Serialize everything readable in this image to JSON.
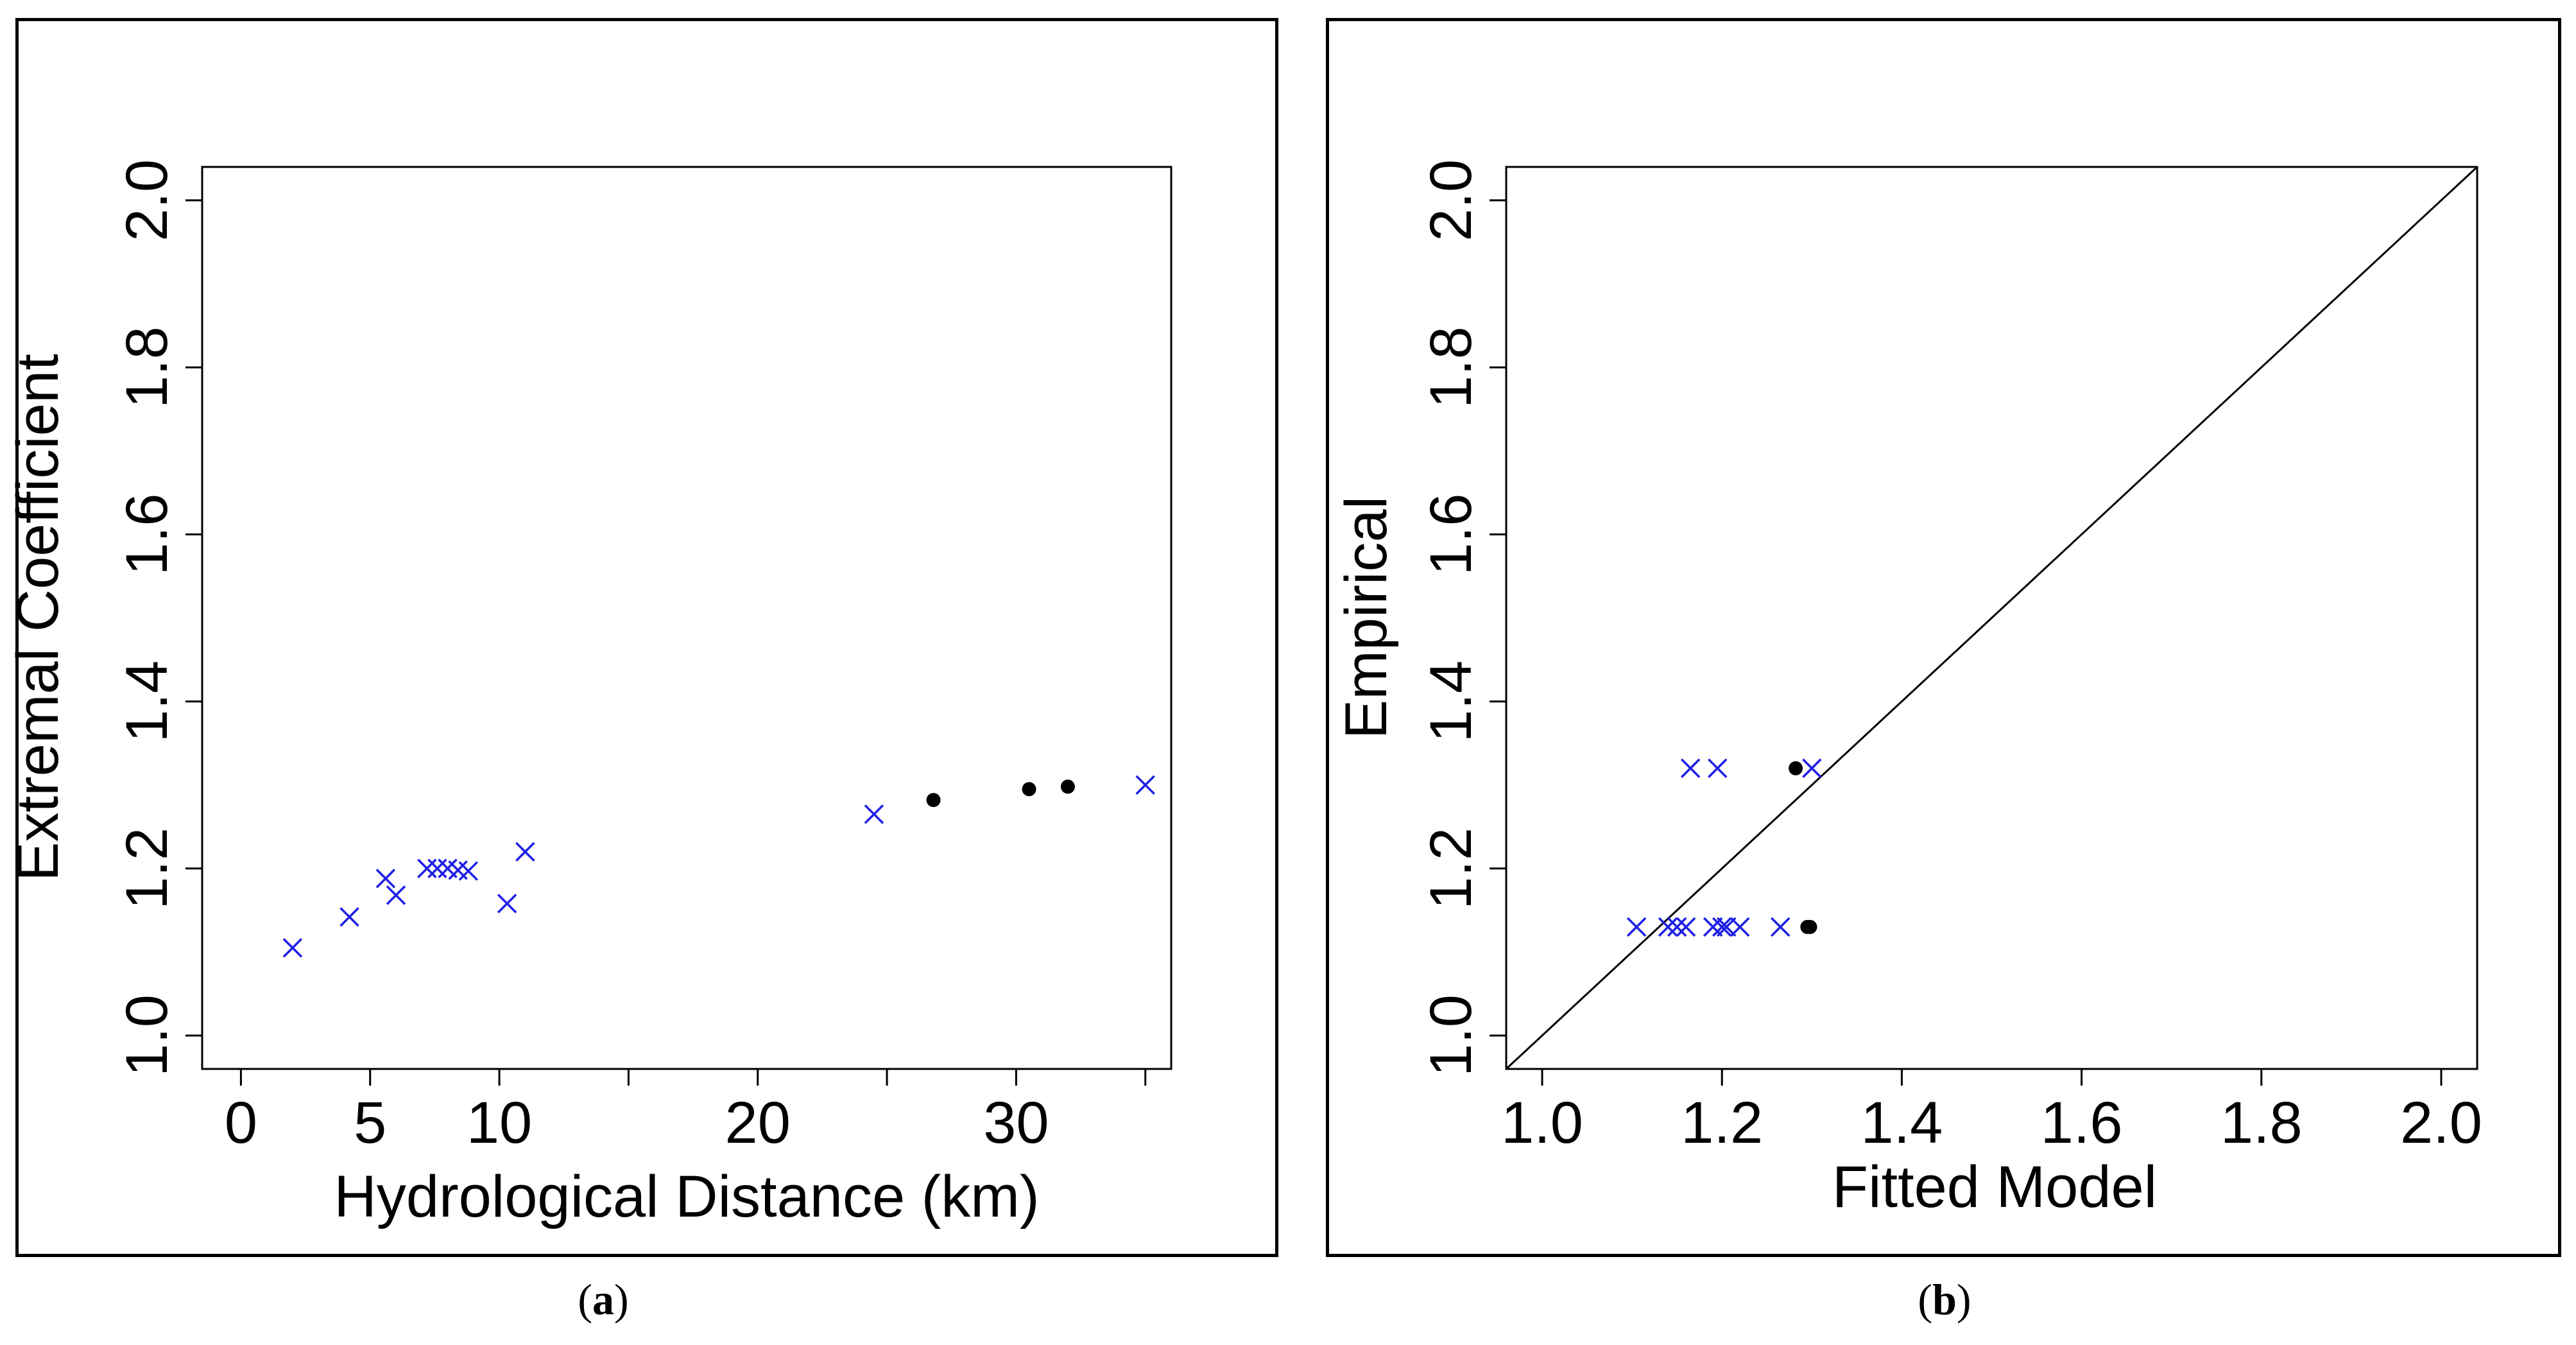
{
  "figure": {
    "caption_a_letter": "a",
    "caption_b_letter": "b"
  },
  "colors": {
    "cross": "#1f1fe6",
    "dot": "#000000",
    "axis": "#000000"
  },
  "chart_data": [
    {
      "id": "a",
      "type": "scatter",
      "title": "",
      "xlabel": "Hydrological Distance (km)",
      "ylabel": "Extremal Coefficient",
      "xlim": [
        -1.5,
        36
      ],
      "ylim": [
        0.96,
        2.04
      ],
      "xticks": [
        0,
        5,
        10,
        15,
        20,
        25,
        30,
        35
      ],
      "xtick_labels": [
        "0",
        "5",
        "10",
        "",
        "20",
        "",
        "30",
        ""
      ],
      "yticks": [
        1.0,
        1.2,
        1.4,
        1.6,
        1.8,
        2.0
      ],
      "ytick_labels": [
        "1.0",
        "1.2",
        "1.4",
        "1.6",
        "1.8",
        "2.0"
      ],
      "series": [
        {
          "name": "crosses",
          "marker": "x",
          "x": [
            2.0,
            4.2,
            5.6,
            6.0,
            7.2,
            7.6,
            8.0,
            8.4,
            8.8,
            10.3,
            11.0,
            24.5,
            35.0
          ],
          "y": [
            1.105,
            1.142,
            1.188,
            1.168,
            1.2,
            1.2,
            1.2,
            1.198,
            1.197,
            1.158,
            1.22,
            1.265,
            1.3
          ]
        },
        {
          "name": "dots",
          "marker": "o",
          "x": [
            26.8,
            30.5,
            32.0
          ],
          "y": [
            1.282,
            1.295,
            1.298
          ]
        }
      ]
    },
    {
      "id": "b",
      "type": "scatter",
      "title": "",
      "xlabel": "Fitted Model",
      "ylabel": "Empirical",
      "xlim": [
        0.96,
        2.04
      ],
      "ylim": [
        0.96,
        2.04
      ],
      "xticks": [
        1.0,
        1.2,
        1.4,
        1.6,
        1.8,
        2.0
      ],
      "xtick_labels": [
        "1.0",
        "1.2",
        "1.4",
        "1.6",
        "1.8",
        "2.0"
      ],
      "yticks": [
        1.0,
        1.2,
        1.4,
        1.6,
        1.8,
        2.0
      ],
      "ytick_labels": [
        "1.0",
        "1.2",
        "1.4",
        "1.6",
        "1.8",
        "2.0"
      ],
      "reference_line": "y = x",
      "series": [
        {
          "name": "crosses",
          "marker": "x",
          "x": [
            1.105,
            1.14,
            1.15,
            1.16,
            1.19,
            1.2,
            1.205,
            1.22,
            1.265,
            1.165,
            1.195,
            1.3
          ],
          "y": [
            1.13,
            1.13,
            1.13,
            1.13,
            1.13,
            1.13,
            1.13,
            1.13,
            1.13,
            1.32,
            1.32,
            1.32
          ]
        },
        {
          "name": "dots",
          "marker": "o",
          "x": [
            1.282,
            1.295,
            1.298
          ],
          "y": [
            1.32,
            1.13,
            1.13
          ]
        }
      ]
    }
  ]
}
